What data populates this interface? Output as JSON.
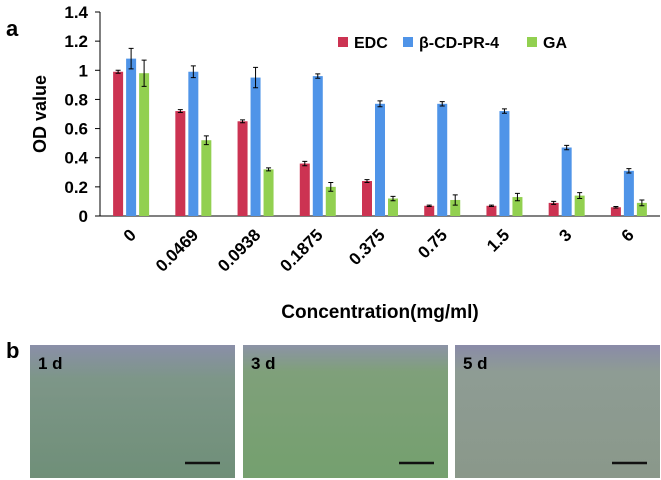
{
  "chart_data": {
    "type": "bar",
    "panel_label": "a",
    "xlabel": "Concentration(mg/ml)",
    "ylabel": "OD value",
    "categories": [
      "0",
      "0.0469",
      "0.0938",
      "0.1875",
      "0.375",
      "0.75",
      "1.5",
      "3",
      "6"
    ],
    "series": [
      {
        "name": "EDC",
        "color": "#cc3352",
        "values": [
          0.99,
          0.72,
          0.65,
          0.36,
          0.24,
          0.07,
          0.07,
          0.09,
          0.06
        ],
        "errors": [
          0.01,
          0.01,
          0.01,
          0.015,
          0.01,
          0.005,
          0.005,
          0.01,
          0.005
        ]
      },
      {
        "name": "β-CD-PR-4",
        "color": "#4f94e8",
        "values": [
          1.08,
          0.99,
          0.95,
          0.96,
          0.77,
          0.77,
          0.72,
          0.47,
          0.31
        ],
        "errors": [
          0.07,
          0.04,
          0.07,
          0.015,
          0.02,
          0.015,
          0.015,
          0.015,
          0.015
        ]
      },
      {
        "name": "GA",
        "color": "#92d050",
        "values": [
          0.98,
          0.52,
          0.32,
          0.2,
          0.12,
          0.11,
          0.13,
          0.14,
          0.09
        ],
        "errors": [
          0.09,
          0.03,
          0.01,
          0.03,
          0.015,
          0.035,
          0.025,
          0.02,
          0.02
        ]
      }
    ],
    "ylim": [
      0,
      1.4
    ],
    "yticks": [
      0,
      0.2,
      0.4,
      0.6,
      0.8,
      1,
      1.2,
      1.4
    ],
    "grid": false,
    "legend": "top"
  },
  "panel_b": {
    "label": "b",
    "images": [
      {
        "label": "1 d"
      },
      {
        "label": "3 d"
      },
      {
        "label": "5 d"
      }
    ]
  }
}
